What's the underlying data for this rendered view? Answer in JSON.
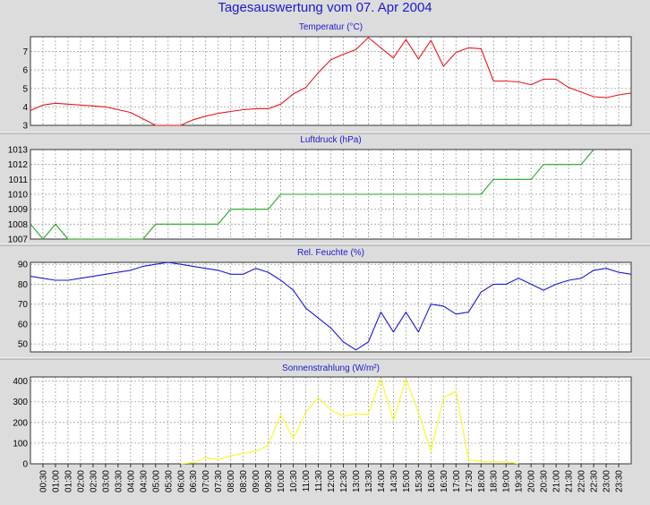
{
  "page_title": "Tagesauswertung vom 07. Apr 2004",
  "colors": {
    "background": "#dcdcdc",
    "plot_background": "#ffffff",
    "title": "#1a1ad0",
    "grid": "#a0a0a0",
    "temperature": "#e8161d",
    "pressure": "#21a821",
    "humidity": "#1a1ad0",
    "radiation": "#f8f81c"
  },
  "time_labels": [
    "00:30",
    "01:00",
    "01:30",
    "02:00",
    "02:30",
    "03:00",
    "03:30",
    "04:00",
    "04:30",
    "05:00",
    "05:30",
    "06:00",
    "06:30",
    "07:00",
    "07:30",
    "08:00",
    "08:30",
    "09:00",
    "09:30",
    "10:00",
    "10:30",
    "11:00",
    "11:30",
    "12:00",
    "12:30",
    "13:00",
    "13:30",
    "14:00",
    "14:30",
    "15:00",
    "15:30",
    "16:00",
    "16:30",
    "17:00",
    "17:30",
    "18:00",
    "18:30",
    "19:00",
    "19:30",
    "20:00",
    "20:30",
    "21:00",
    "21:30",
    "22:00",
    "22:30",
    "23:00",
    "23:30"
  ],
  "chart_data": [
    {
      "type": "line",
      "title": "Temperatur (°C)",
      "ylim": [
        3,
        7.8
      ],
      "yticks": [
        3,
        4,
        5,
        6,
        7
      ],
      "grid": true,
      "x": [
        0,
        0.5,
        1,
        1.5,
        2,
        2.5,
        3,
        3.5,
        4,
        4.5,
        5,
        5.5,
        6,
        6.5,
        7,
        7.5,
        8,
        8.5,
        9,
        9.5,
        10,
        10.5,
        11,
        11.5,
        12,
        12.5,
        13,
        13.5,
        14,
        14.5,
        15,
        15.5,
        16,
        16.5,
        17,
        17.5,
        18,
        18.5,
        19,
        19.5,
        20,
        20.5,
        21,
        21.5,
        22,
        22.5,
        23,
        23.5,
        24
      ],
      "values": [
        3.8,
        4.1,
        4.2,
        4.15,
        4.1,
        4.05,
        4.0,
        3.85,
        3.7,
        3.35,
        3.0,
        3.0,
        3.0,
        3.3,
        3.5,
        3.65,
        3.75,
        3.85,
        3.9,
        3.9,
        4.15,
        4.7,
        5.05,
        5.85,
        6.55,
        6.85,
        7.1,
        7.75,
        7.2,
        6.65,
        7.65,
        6.6,
        7.6,
        6.2,
        6.95,
        7.2,
        7.15,
        5.4,
        5.4,
        5.35,
        5.2,
        5.5,
        5.5,
        5.05,
        4.8,
        4.55,
        4.5,
        4.65,
        4.75
      ],
      "series_color": "#e8161d"
    },
    {
      "type": "line",
      "title": "Luftdruck (hPa)",
      "ylim": [
        1007,
        1013
      ],
      "yticks": [
        1007,
        1008,
        1009,
        1010,
        1011,
        1012,
        1013
      ],
      "grid": true,
      "x": [
        0,
        0.5,
        1,
        1.5,
        4.5,
        5,
        6,
        7,
        7.5,
        8,
        9,
        9.5,
        10,
        18,
        18.5,
        20,
        20.5,
        22,
        22.5
      ],
      "values": [
        1008,
        1007,
        1008,
        1007,
        1007,
        1008,
        1008,
        1008,
        1008,
        1009,
        1009,
        1009,
        1010,
        1010,
        1011,
        1011,
        1012,
        1012,
        1013
      ],
      "series_color": "#21a821"
    },
    {
      "type": "line",
      "title": "Rel. Feuchte (%)",
      "ylim": [
        46,
        91
      ],
      "yticks": [
        50,
        60,
        70,
        80,
        90
      ],
      "grid": true,
      "x": [
        0,
        0.5,
        1,
        1.5,
        2,
        2.5,
        3,
        3.5,
        4,
        4.5,
        5,
        5.5,
        6,
        6.5,
        7,
        7.5,
        8,
        8.5,
        9,
        9.5,
        10,
        10.5,
        11,
        11.5,
        12,
        12.5,
        13,
        13.5,
        14,
        14.5,
        15,
        15.5,
        16,
        16.5,
        17,
        17.5,
        18,
        18.5,
        19,
        19.5,
        20,
        20.5,
        21,
        21.5,
        22,
        22.5,
        23,
        23.5,
        24
      ],
      "values": [
        84,
        83,
        82,
        82,
        83,
        84,
        85,
        86,
        87,
        89,
        90,
        91,
        90,
        89,
        88,
        87,
        85,
        85,
        88,
        86,
        82,
        77,
        68,
        63,
        58,
        51,
        47,
        51,
        66,
        56,
        66,
        56,
        70,
        69,
        65,
        66,
        76,
        80,
        80,
        83,
        80,
        77,
        80,
        82,
        83,
        87,
        88,
        86,
        85
      ],
      "series_color": "#1a1ad0"
    },
    {
      "type": "line",
      "title": "Sonnenstrahlung (W/m²)",
      "ylim": [
        0,
        420
      ],
      "yticks": [
        0,
        100,
        200,
        300,
        400
      ],
      "grid": true,
      "x": [
        6,
        6.5,
        7,
        7.5,
        8,
        8.5,
        9,
        9.5,
        10,
        10.5,
        11,
        11.5,
        12,
        12.5,
        13,
        13.5,
        14,
        14.5,
        15,
        15.5,
        16,
        16.5,
        17,
        17.5,
        18,
        18.5,
        19,
        19.5
      ],
      "values": [
        0,
        5,
        30,
        20,
        40,
        50,
        60,
        90,
        240,
        120,
        250,
        320,
        260,
        230,
        240,
        240,
        410,
        210,
        410,
        250,
        60,
        320,
        350,
        20,
        10,
        10,
        10,
        0
      ],
      "series_color": "#f8f81c"
    }
  ]
}
